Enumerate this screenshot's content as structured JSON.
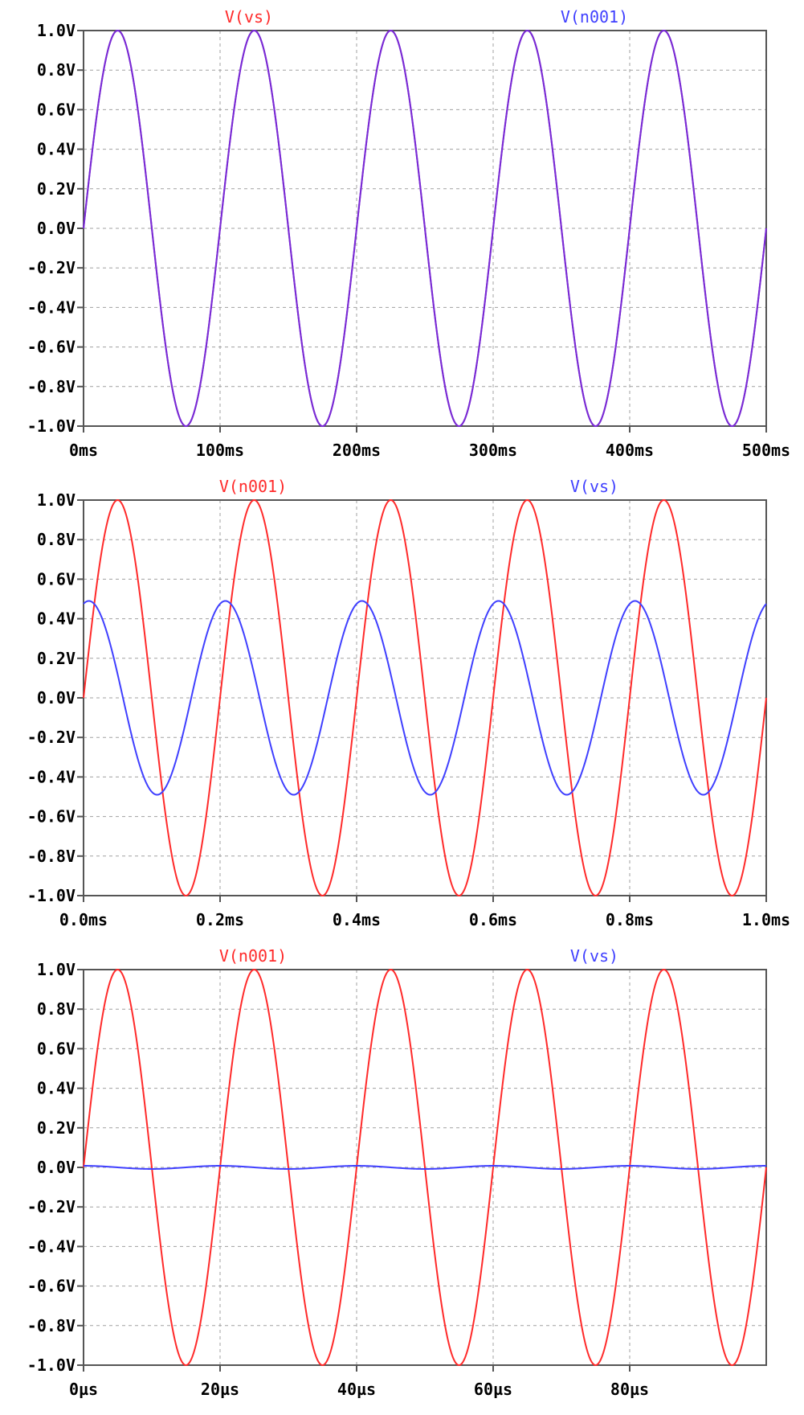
{
  "colors": {
    "red": "#ff2a2a",
    "blue": "#3f3fff",
    "purple": "#7a2ad4",
    "grid": "#a0a0a0",
    "axis": "#555555"
  },
  "chart_data": [
    {
      "type": "line",
      "legend": [
        {
          "name": "V(vs)",
          "color": "#ff2a2a"
        },
        {
          "name": "V(n001)",
          "color": "#3f3fff"
        }
      ],
      "xlim": [
        0,
        500
      ],
      "ylim": [
        -1.0,
        1.0
      ],
      "x_ticks": [
        0,
        100,
        200,
        300,
        400,
        500
      ],
      "x_tick_labels": [
        "0ms",
        "100ms",
        "200ms",
        "300ms",
        "400ms",
        "500ms"
      ],
      "y_ticks": [
        1.0,
        0.8,
        0.6,
        0.4,
        0.2,
        0.0,
        -0.2,
        -0.4,
        -0.6,
        -0.8,
        -1.0
      ],
      "y_tick_labels": [
        "1.0V",
        "0.8V",
        "0.6V",
        "0.4V",
        "0.2V",
        "0.0V",
        "-0.2V",
        "-0.4V",
        "-0.6V",
        "-0.8V",
        "-1.0V"
      ],
      "grid": true,
      "series": [
        {
          "name": "V(vs)",
          "color": "#7a2ad4",
          "amplitude": 1.0,
          "period": 100,
          "phase_deg": 0,
          "x_unit": "ms"
        },
        {
          "name": "V(n001)",
          "color": "#7a2ad4",
          "amplitude": 1.0,
          "period": 100,
          "phase_deg": 0,
          "x_unit": "ms"
        }
      ]
    },
    {
      "type": "line",
      "legend": [
        {
          "name": "V(n001)",
          "color": "#ff2a2a"
        },
        {
          "name": "V(vs)",
          "color": "#3f3fff"
        }
      ],
      "xlim": [
        0,
        1.0
      ],
      "ylim": [
        -1.0,
        1.0
      ],
      "x_ticks": [
        0,
        0.2,
        0.4,
        0.6,
        0.8,
        1.0
      ],
      "x_tick_labels": [
        "0.0ms",
        "0.2ms",
        "0.4ms",
        "0.6ms",
        "0.8ms",
        "1.0ms"
      ],
      "y_ticks": [
        1.0,
        0.8,
        0.6,
        0.4,
        0.2,
        0.0,
        -0.2,
        -0.4,
        -0.6,
        -0.8,
        -1.0
      ],
      "y_tick_labels": [
        "1.0V",
        "0.8V",
        "0.6V",
        "0.4V",
        "0.2V",
        "0.0V",
        "-0.2V",
        "-0.4V",
        "-0.6V",
        "-0.8V",
        "-1.0V"
      ],
      "grid": true,
      "series": [
        {
          "name": "V(n001)",
          "color": "#ff2a2a",
          "amplitude": 1.0,
          "period": 0.2,
          "phase_deg": 0,
          "x_unit": "ms"
        },
        {
          "name": "V(vs)",
          "color": "#3f3fff",
          "amplitude": 0.49,
          "period": 0.2,
          "phase_deg": 76,
          "x_unit": "ms"
        }
      ]
    },
    {
      "type": "line",
      "legend": [
        {
          "name": "V(n001)",
          "color": "#ff2a2a"
        },
        {
          "name": "V(vs)",
          "color": "#3f3fff"
        }
      ],
      "xlim": [
        0,
        100
      ],
      "ylim": [
        -1.0,
        1.0
      ],
      "x_ticks": [
        0,
        20,
        40,
        60,
        80
      ],
      "x_tick_labels": [
        "0µs",
        "20µs",
        "40µs",
        "60µs",
        "80µs"
      ],
      "y_ticks": [
        1.0,
        0.8,
        0.6,
        0.4,
        0.2,
        0.0,
        -0.2,
        -0.4,
        -0.6,
        -0.8,
        -1.0
      ],
      "y_tick_labels": [
        "1.0V",
        "0.8V",
        "0.6V",
        "0.4V",
        "0.2V",
        "0.0V",
        "-0.2V",
        "-0.4V",
        "-0.6V",
        "-0.8V",
        "-1.0V"
      ],
      "grid": true,
      "series": [
        {
          "name": "V(n001)",
          "color": "#ff2a2a",
          "amplitude": 1.0,
          "period": 20,
          "phase_deg": 0,
          "x_unit": "µs"
        },
        {
          "name": "V(vs)",
          "color": "#3f3fff",
          "amplitude": 0.008,
          "period": 20,
          "phase_deg": 90,
          "x_unit": "µs"
        }
      ]
    }
  ]
}
